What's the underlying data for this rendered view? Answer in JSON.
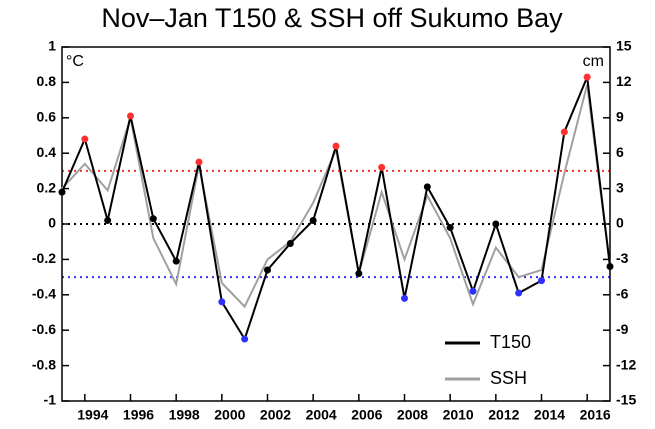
{
  "chart_data": {
    "type": "line",
    "title": "Nov–Jan T150 & SSH off Sukumo Bay",
    "y_unit": "°C",
    "y2_unit": "cm",
    "x": [
      1993,
      1994,
      1995,
      1996,
      1997,
      1998,
      1999,
      2000,
      2001,
      2002,
      2003,
      2004,
      2005,
      2006,
      2007,
      2008,
      2009,
      2010,
      2011,
      2012,
      2013,
      2014,
      2015,
      2016,
      2017
    ],
    "series": [
      {
        "name": "SSH",
        "color": "#a0a0a0",
        "axis": "y2",
        "values": [
          3,
          5.1,
          2.85,
          9,
          -1.2,
          -5.1,
          5,
          -5,
          -7,
          -3,
          -1.5,
          1.8,
          6.3,
          -4.2,
          2.7,
          -3,
          2.4,
          -1.2,
          -6.8,
          -2,
          -4.5,
          -3.9,
          4.3,
          11.8,
          -3.6
        ]
      },
      {
        "name": "T150",
        "color": "#000000",
        "axis": "y",
        "values": [
          0.18,
          0.48,
          0.02,
          0.61,
          0.03,
          -0.21,
          0.35,
          -0.44,
          -0.65,
          -0.26,
          -0.11,
          0.02,
          0.44,
          -0.28,
          0.32,
          -0.42,
          0.21,
          -0.02,
          -0.38,
          0,
          -0.39,
          -0.32,
          0.52,
          0.83,
          -0.24
        ]
      }
    ],
    "thresholds": [
      {
        "value": 0.3,
        "color": "#ff3030"
      },
      {
        "value": 0,
        "color": "#000000"
      },
      {
        "value": -0.3,
        "color": "#3030ff"
      }
    ],
    "xlim": [
      1993,
      2017
    ],
    "xticks": [
      1994,
      1996,
      1998,
      2000,
      2002,
      2004,
      2006,
      2008,
      2010,
      2012,
      2014,
      2016
    ],
    "ylim": [
      -1,
      1
    ],
    "yticks": [
      -1,
      -0.8,
      -0.6,
      -0.4,
      -0.2,
      0,
      0.2,
      0.4,
      0.6,
      0.8,
      1
    ],
    "y2lim": [
      -15,
      15
    ],
    "y2ticks": [
      -15,
      -12,
      -9,
      -6,
      -3,
      0,
      3,
      6,
      9,
      12,
      15
    ],
    "legend": "lower right"
  }
}
